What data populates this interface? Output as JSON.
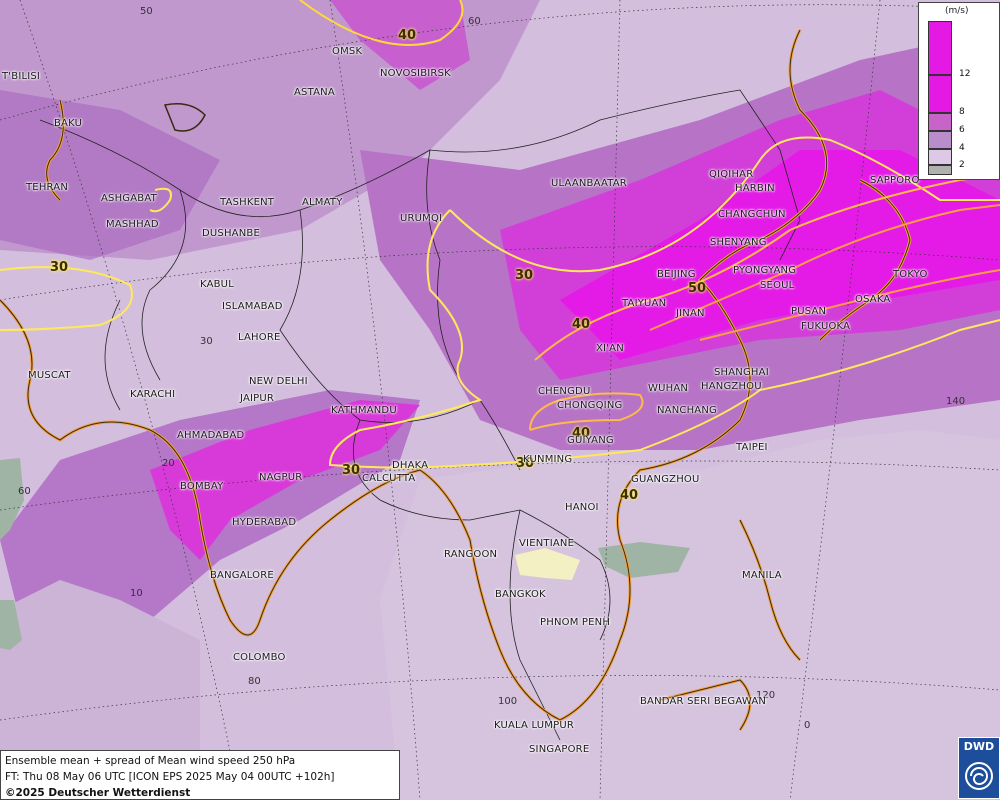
{
  "title_line": "Ensemble mean + spread of Mean wind speed 250 hPa",
  "forecast_line": "FT: Thu 08 May 06 UTC [ICON EPS 2025 May 04 00UTC +102h]",
  "copyright": "©2025 Deutscher Wetterdienst",
  "logo_text": "DWD",
  "legend": {
    "unit": "(m/s)",
    "items": [
      {
        "label": "",
        "color": "#e419e4"
      },
      {
        "label": "12",
        "color": "#e419e4"
      },
      {
        "label": "8",
        "color": "#c864c8"
      },
      {
        "label": "6",
        "color": "#b98ccb"
      },
      {
        "label": "4",
        "color": "#ddc8e6"
      },
      {
        "label": "2",
        "color": "#b0b0b0"
      }
    ]
  },
  "cities": [
    {
      "name": "OMSK"
    },
    {
      "name": "NOVOSIBIRSK"
    },
    {
      "name": "ASTANA"
    },
    {
      "name": "T'BILISI"
    },
    {
      "name": "BAKU"
    },
    {
      "name": "TEHRAN"
    },
    {
      "name": "ASHGABAT"
    },
    {
      "name": "MASHHAD"
    },
    {
      "name": "TASHKENT"
    },
    {
      "name": "ALMATY"
    },
    {
      "name": "DUSHANBE"
    },
    {
      "name": "URUMQI"
    },
    {
      "name": "ULAANBAATAR"
    },
    {
      "name": "QIQIHAR"
    },
    {
      "name": "HARBIN"
    },
    {
      "name": "SAPPORO"
    },
    {
      "name": "CHANGCHUN"
    },
    {
      "name": "SHENYANG"
    },
    {
      "name": "BEIJING"
    },
    {
      "name": "PYONGYANG"
    },
    {
      "name": "SEOUL"
    },
    {
      "name": "TOKYO"
    },
    {
      "name": "OSAKA"
    },
    {
      "name": "TAIYUAN"
    },
    {
      "name": "JINAN"
    },
    {
      "name": "PUSAN"
    },
    {
      "name": "FUKUOKA"
    },
    {
      "name": "KABUL"
    },
    {
      "name": "ISLAMABAD"
    },
    {
      "name": "LAHORE"
    },
    {
      "name": "XI'AN"
    },
    {
      "name": "SHANGHAI"
    },
    {
      "name": "MUSCAT"
    },
    {
      "name": "NEW DELHI"
    },
    {
      "name": "CHENGDU"
    },
    {
      "name": "WUHAN"
    },
    {
      "name": "HANGZHOU"
    },
    {
      "name": "KARACHI"
    },
    {
      "name": "JAIPUR"
    },
    {
      "name": "KATHMANDU"
    },
    {
      "name": "CHONGQING"
    },
    {
      "name": "NANCHANG"
    },
    {
      "name": "AHMADABAD"
    },
    {
      "name": "GUIYANG"
    },
    {
      "name": "TAIPEI"
    },
    {
      "name": "KUNMING"
    },
    {
      "name": "DHAKA"
    },
    {
      "name": "NAGPUR"
    },
    {
      "name": "CALCUTTA"
    },
    {
      "name": "BOMBAY"
    },
    {
      "name": "GUANGZHOU"
    },
    {
      "name": "HANOI"
    },
    {
      "name": "HYDERABAD"
    },
    {
      "name": "RANGOON"
    },
    {
      "name": "VIENTIANE"
    },
    {
      "name": "BANGALORE"
    },
    {
      "name": "MANILA"
    },
    {
      "name": "BANGKOK"
    },
    {
      "name": "PHNOM PENH"
    },
    {
      "name": "COLOMBO"
    },
    {
      "name": "BANDAR SERI BEGAWAN"
    },
    {
      "name": "KUALA LUMPUR"
    },
    {
      "name": "SINGAPORE"
    }
  ],
  "grid_labels": [
    "50",
    "60",
    "30",
    "140",
    "20",
    "60",
    "10",
    "80",
    "120",
    "100",
    "0"
  ],
  "contour_labels": [
    "40",
    "30",
    "30",
    "40",
    "50",
    "40",
    "30",
    "30",
    "40"
  ]
}
